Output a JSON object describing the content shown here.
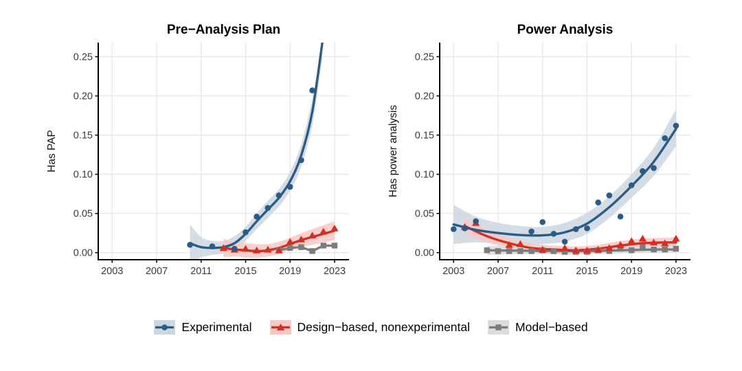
{
  "figure": {
    "background": "#ffffff",
    "axis": {
      "x_ticks": [
        2003,
        2007,
        2011,
        2015,
        2019,
        2023
      ],
      "x_tick_labels": [
        "2003",
        "2007",
        "2011",
        "2015",
        "2019",
        "2023"
      ],
      "y_ticks": [
        0,
        0.05,
        0.1,
        0.15,
        0.2,
        0.25
      ],
      "y_tick_labels": [
        "0.00",
        "0.05",
        "0.10",
        "0.15",
        "0.20",
        "0.25"
      ],
      "grid_color": "#e5e5e5",
      "axis_line_color": "#000000",
      "tick_label_color": "#3a3a3a"
    }
  },
  "legend": {
    "items": [
      {
        "label": "Experimental",
        "line_color": "#2b5c85",
        "fill_color": "#ccd6e1",
        "marker": "circle"
      },
      {
        "label": "Design−based, nonexperimental",
        "line_color": "#d62e23",
        "fill_color": "#f7c9c6",
        "marker": "triangle"
      },
      {
        "label": "Model−based",
        "line_color": "#7c7c7c",
        "fill_color": "#dcdcdc",
        "marker": "square"
      }
    ]
  },
  "chart_data": [
    {
      "type": "line",
      "title": "Pre−Analysis Plan",
      "ylabel": "Has PAP",
      "xlabel": "",
      "x_range": [
        2001.75,
        2024.3
      ],
      "y_range": [
        -0.009,
        0.268
      ],
      "grid": true,
      "series": [
        {
          "name": "Experimental",
          "color": "#2b5c85",
          "ribbon_color": "#ccd6e1",
          "marker": "circle",
          "points": [
            [
              2010,
              0.01
            ],
            [
              2012,
              0.008
            ],
            [
              2014,
              0.005
            ],
            [
              2015,
              0.026
            ],
            [
              2016,
              0.046
            ],
            [
              2017,
              0.057
            ],
            [
              2018,
              0.073
            ],
            [
              2019,
              0.084
            ],
            [
              2020,
              0.118
            ],
            [
              2021,
              0.207
            ]
          ],
          "trend": [
            [
              2010,
              0.012
            ],
            [
              2011,
              0.007
            ],
            [
              2012,
              0.006
            ],
            [
              2013,
              0.007
            ],
            [
              2014,
              0.012
            ],
            [
              2015,
              0.024
            ],
            [
              2016,
              0.04
            ],
            [
              2017,
              0.055
            ],
            [
              2018,
              0.07
            ],
            [
              2019,
              0.091
            ],
            [
              2020,
              0.124
            ],
            [
              2021,
              0.18
            ],
            [
              2021.9,
              0.268
            ]
          ],
          "ribbon": [
            [
              2010,
              -0.012,
              0.036
            ],
            [
              2011,
              -0.006,
              0.02
            ],
            [
              2012,
              -0.003,
              0.015
            ],
            [
              2013,
              -0.001,
              0.015
            ],
            [
              2014,
              0.003,
              0.021
            ],
            [
              2015,
              0.015,
              0.033
            ],
            [
              2016,
              0.03,
              0.05
            ],
            [
              2017,
              0.044,
              0.066
            ],
            [
              2018,
              0.059,
              0.081
            ],
            [
              2019,
              0.079,
              0.103
            ],
            [
              2020,
              0.11,
              0.138
            ],
            [
              2021,
              0.163,
              0.197
            ],
            [
              2021.9,
              0.248,
              0.268
            ]
          ]
        },
        {
          "name": "Design-based, nonexperimental",
          "color": "#d62e23",
          "ribbon_color": "#f7c9c6",
          "marker": "triangle",
          "points": [
            [
              2013,
              0.006
            ],
            [
              2014,
              0.004
            ],
            [
              2015,
              0.005
            ],
            [
              2016,
              0.003
            ],
            [
              2017,
              0.004
            ],
            [
              2018,
              0.003
            ],
            [
              2019,
              0.014
            ],
            [
              2020,
              0.017
            ],
            [
              2021,
              0.022
            ],
            [
              2022,
              0.027
            ],
            [
              2023,
              0.031
            ]
          ],
          "trend": [
            [
              2013,
              0.006
            ],
            [
              2014,
              0.004
            ],
            [
              2015,
              0.003
            ],
            [
              2016,
              0.002
            ],
            [
              2017,
              0.003
            ],
            [
              2018,
              0.006
            ],
            [
              2019,
              0.011
            ],
            [
              2020,
              0.016
            ],
            [
              2021,
              0.02
            ],
            [
              2022,
              0.024
            ],
            [
              2023,
              0.028
            ]
          ],
          "ribbon": [
            [
              2013,
              -0.006,
              0.018
            ],
            [
              2014,
              -0.005,
              0.013
            ],
            [
              2015,
              -0.006,
              0.012
            ],
            [
              2016,
              -0.007,
              0.011
            ],
            [
              2017,
              -0.005,
              0.011
            ],
            [
              2018,
              -0.002,
              0.014
            ],
            [
              2019,
              0.003,
              0.019
            ],
            [
              2020,
              0.007,
              0.025
            ],
            [
              2021,
              0.01,
              0.03
            ],
            [
              2022,
              0.013,
              0.035
            ],
            [
              2023,
              0.016,
              0.04
            ]
          ]
        },
        {
          "name": "Model-based",
          "color": "#7c7c7c",
          "ribbon_color": "#dcdcdc",
          "marker": "square",
          "jagged": true,
          "points": [
            [
              2018,
              0.003
            ],
            [
              2019,
              0.006
            ],
            [
              2020,
              0.007
            ],
            [
              2021,
              0.002
            ],
            [
              2022,
              0.009
            ],
            [
              2023,
              0.009
            ]
          ],
          "trend": [
            [
              2018,
              0.003
            ],
            [
              2019,
              0.006
            ],
            [
              2020,
              0.007
            ],
            [
              2021,
              0.002
            ],
            [
              2022,
              0.009
            ],
            [
              2023,
              0.009
            ]
          ],
          "ribbon": null
        }
      ]
    },
    {
      "type": "line",
      "title": "Power Analysis",
      "ylabel": "Has power analysis",
      "xlabel": "",
      "x_range": [
        2001.75,
        2024.3
      ],
      "y_range": [
        -0.009,
        0.268
      ],
      "grid": true,
      "series": [
        {
          "name": "Experimental",
          "color": "#2b5c85",
          "ribbon_color": "#ccd6e1",
          "marker": "circle",
          "points": [
            [
              2003,
              0.03
            ],
            [
              2004,
              0.031
            ],
            [
              2005,
              0.04
            ],
            [
              2010,
              0.027
            ],
            [
              2011,
              0.039
            ],
            [
              2012,
              0.024
            ],
            [
              2013,
              0.014
            ],
            [
              2014,
              0.03
            ],
            [
              2015,
              0.031
            ],
            [
              2016,
              0.064
            ],
            [
              2017,
              0.073
            ],
            [
              2018,
              0.046
            ],
            [
              2019,
              0.086
            ],
            [
              2020,
              0.104
            ],
            [
              2021,
              0.108
            ],
            [
              2022,
              0.146
            ],
            [
              2023,
              0.162
            ]
          ],
          "trend": [
            [
              2003,
              0.036
            ],
            [
              2005,
              0.029
            ],
            [
              2007,
              0.025
            ],
            [
              2009,
              0.0225
            ],
            [
              2011,
              0.022
            ],
            [
              2013,
              0.026
            ],
            [
              2015,
              0.037
            ],
            [
              2017,
              0.058
            ],
            [
              2019,
              0.085
            ],
            [
              2021,
              0.116
            ],
            [
              2023,
              0.158
            ]
          ],
          "ribbon": [
            [
              2003,
              0.011,
              0.061
            ],
            [
              2005,
              0.013,
              0.046
            ],
            [
              2007,
              0.012,
              0.038
            ],
            [
              2009,
              0.011,
              0.034
            ],
            [
              2011,
              0.011,
              0.033
            ],
            [
              2013,
              0.014,
              0.038
            ],
            [
              2015,
              0.024,
              0.051
            ],
            [
              2017,
              0.044,
              0.072
            ],
            [
              2019,
              0.07,
              0.1
            ],
            [
              2021,
              0.098,
              0.134
            ],
            [
              2023,
              0.136,
              0.183
            ]
          ]
        },
        {
          "name": "Design-based, nonexperimental",
          "color": "#d62e23",
          "ribbon_color": "#f7c9c6",
          "marker": "triangle",
          "points": [
            [
              2004,
              0.033
            ],
            [
              2005,
              0.038
            ],
            [
              2008,
              0.01
            ],
            [
              2009,
              0.011
            ],
            [
              2011,
              0.004
            ],
            [
              2013,
              0.006
            ],
            [
              2014,
              0.003
            ],
            [
              2015,
              0.003
            ],
            [
              2016,
              0.004
            ],
            [
              2017,
              0.006
            ],
            [
              2018,
              0.01
            ],
            [
              2019,
              0.015
            ],
            [
              2020,
              0.018
            ],
            [
              2021,
              0.013
            ],
            [
              2022,
              0.012
            ],
            [
              2023,
              0.018
            ]
          ],
          "trend": [
            [
              2004,
              0.034
            ],
            [
              2006,
              0.021
            ],
            [
              2008,
              0.012
            ],
            [
              2010,
              0.006
            ],
            [
              2012,
              0.004
            ],
            [
              2014,
              0.003
            ],
            [
              2016,
              0.005
            ],
            [
              2018,
              0.009
            ],
            [
              2020,
              0.012
            ],
            [
              2022,
              0.013
            ],
            [
              2023,
              0.013
            ]
          ],
          "ribbon": [
            [
              2004,
              0.023,
              0.045
            ],
            [
              2006,
              0.013,
              0.029
            ],
            [
              2008,
              0.005,
              0.019
            ],
            [
              2010,
              0.001,
              0.012
            ],
            [
              2012,
              -0.002,
              0.009
            ],
            [
              2014,
              -0.002,
              0.008
            ],
            [
              2016,
              0.0,
              0.01
            ],
            [
              2018,
              0.004,
              0.015
            ],
            [
              2020,
              0.006,
              0.018
            ],
            [
              2022,
              0.007,
              0.019
            ],
            [
              2023,
              0.007,
              0.02
            ]
          ]
        },
        {
          "name": "Model-based",
          "color": "#7c7c7c",
          "ribbon_color": "#dcdcdc",
          "marker": "square",
          "points": [
            [
              2006,
              0.003
            ],
            [
              2007,
              0.002
            ],
            [
              2008,
              0.002
            ],
            [
              2009,
              0.002
            ],
            [
              2010,
              0.002
            ],
            [
              2011,
              0.003
            ],
            [
              2012,
              0.002
            ],
            [
              2013,
              0.001
            ],
            [
              2014,
              0.001
            ],
            [
              2015,
              0.001
            ],
            [
              2016,
              0.003
            ],
            [
              2017,
              0.002
            ],
            [
              2018,
              0.005
            ],
            [
              2019,
              0.003
            ],
            [
              2020,
              0.007
            ],
            [
              2021,
              0.004
            ],
            [
              2022,
              0.004
            ],
            [
              2023,
              0.005
            ]
          ],
          "trend": [
            [
              2006,
              0.003
            ],
            [
              2009,
              0.0025
            ],
            [
              2012,
              0.002
            ],
            [
              2015,
              0.002
            ],
            [
              2018,
              0.003
            ],
            [
              2021,
              0.004
            ],
            [
              2023,
              0.004
            ]
          ],
          "ribbon": [
            [
              2006,
              -0.003,
              0.009
            ],
            [
              2009,
              -0.002,
              0.007
            ],
            [
              2012,
              -0.002,
              0.006
            ],
            [
              2015,
              -0.002,
              0.006
            ],
            [
              2018,
              -0.001,
              0.007
            ],
            [
              2021,
              0.0,
              0.009
            ],
            [
              2023,
              0.0,
              0.009
            ]
          ]
        }
      ]
    }
  ]
}
